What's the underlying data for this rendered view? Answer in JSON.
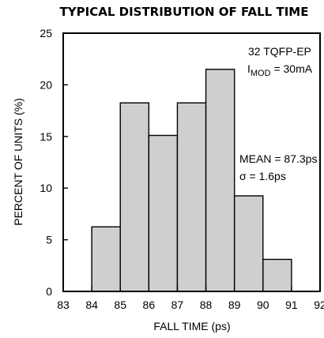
{
  "chart_data": {
    "type": "bar",
    "title": "TYPICAL DISTRIBUTION OF FALL TIME",
    "xlabel": "FALL TIME (ps)",
    "ylabel": "PERCENT OF UNITS (%)",
    "xlim": [
      83,
      92
    ],
    "ylim": [
      0,
      25
    ],
    "x_ticks": [
      "83",
      "84",
      "85",
      "86",
      "87",
      "88",
      "89",
      "90",
      "91",
      "92"
    ],
    "y_ticks": [
      "0",
      "5",
      "10",
      "15",
      "20",
      "25"
    ],
    "bins": [
      {
        "start": 84,
        "end": 85,
        "value": 6.25
      },
      {
        "start": 85,
        "end": 86,
        "value": 18.25
      },
      {
        "start": 86,
        "end": 87,
        "value": 15.1
      },
      {
        "start": 87,
        "end": 88,
        "value": 18.25
      },
      {
        "start": 88,
        "end": 89,
        "value": 21.5
      },
      {
        "start": 89,
        "end": 90,
        "value": 9.25
      },
      {
        "start": 90,
        "end": 91,
        "value": 3.1
      }
    ],
    "grid": false,
    "annotations": {
      "package": "32 TQFP-EP",
      "imod_prefix": "I",
      "imod_sub": "MOD",
      "imod_value": " = 30mA",
      "mean": "MEAN = 87.3ps",
      "sigma": "σ = 1.6ps"
    }
  }
}
